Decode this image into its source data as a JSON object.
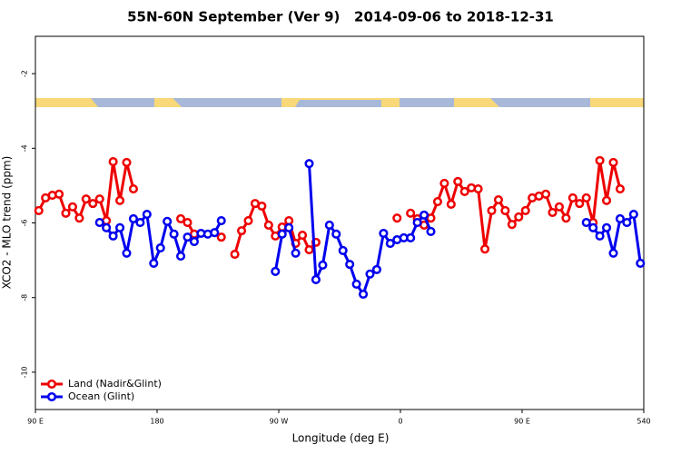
{
  "chart_data": {
    "type": "line",
    "title": "55N-60N September (Ver 9)   2014-09-06 to 2018-12-31",
    "xlabel": "Longitude (deg E)",
    "ylabel": "XCO2 - MLO trend (ppm)",
    "x": [
      92.5,
      97.5,
      102.5,
      107.5,
      112.5,
      117.5,
      122.5,
      127.5,
      132.5,
      137.5,
      142.5,
      147.5,
      152.5,
      157.5,
      162.5,
      167.5,
      172.5,
      177.5,
      182.5,
      187.5,
      192.5,
      197.5,
      202.5,
      207.5,
      212.5,
      217.5,
      222.5,
      227.5,
      232.5,
      237.5,
      242.5,
      247.5,
      252.5,
      257.5,
      262.5,
      267.5,
      272.5,
      277.5,
      282.5,
      287.5,
      292.5,
      297.5,
      302.5,
      307.5,
      312.5,
      317.5,
      322.5,
      327.5,
      332.5,
      337.5,
      342.5,
      347.5,
      352.5,
      357.5,
      362.5,
      367.5,
      372.5,
      377.5,
      382.5,
      387.5,
      392.5,
      397.5,
      402.5,
      407.5,
      412.5,
      417.5,
      422.5,
      427.5,
      432.5,
      437.5,
      442.5,
      447.5,
      452.5,
      457.5,
      462.5,
      467.5,
      472.5,
      477.5,
      482.5,
      487.5,
      492.5,
      497.5,
      502.5,
      507.5,
      512.5,
      517.5,
      522.5,
      527.5,
      532.5,
      537.5
    ],
    "series": [
      {
        "name": "Land (Nadir&Glint)",
        "color": "#ee0000",
        "values": [
          -5.67,
          -5.33,
          -5.26,
          -5.23,
          -5.74,
          -5.57,
          -5.87,
          -5.36,
          -5.48,
          -5.36,
          -5.94,
          -4.36,
          -5.4,
          -4.38,
          -5.09,
          null,
          null,
          null,
          null,
          null,
          null,
          -5.89,
          -5.99,
          -6.3,
          null,
          null,
          null,
          -6.38,
          null,
          -6.84,
          -6.21,
          -5.94,
          -5.48,
          -5.55,
          -6.06,
          -6.35,
          -6.11,
          -5.94,
          -6.55,
          -6.33,
          -6.72,
          -6.52,
          null,
          null,
          null,
          null,
          null,
          null,
          null,
          null,
          null,
          null,
          null,
          -5.87,
          null,
          -5.74,
          -5.89,
          -6.06,
          -5.87,
          -5.43,
          -4.94,
          -5.5,
          -4.89,
          -5.16,
          -5.06,
          -5.09,
          -6.7,
          -5.67,
          -5.38,
          -5.67,
          -6.04,
          -5.84,
          -5.67,
          -5.33,
          -5.28,
          -5.23,
          -5.72,
          -5.57,
          -5.87,
          -5.33,
          -5.48,
          -5.33,
          -5.99,
          -4.33,
          -5.4,
          -4.38,
          -5.09,
          null,
          null,
          null
        ]
      },
      {
        "name": "Ocean (Glint)",
        "color": "#0000ee",
        "values": [
          null,
          null,
          null,
          null,
          null,
          null,
          null,
          null,
          null,
          -5.99,
          -6.13,
          -6.35,
          -6.13,
          -6.81,
          -5.89,
          -5.99,
          -5.77,
          -7.08,
          -6.67,
          -5.96,
          -6.3,
          -6.89,
          -6.38,
          -6.5,
          -6.28,
          -6.3,
          -6.26,
          -5.94,
          null,
          null,
          null,
          null,
          null,
          null,
          null,
          -7.3,
          -6.3,
          -6.13,
          -6.81,
          null,
          -4.41,
          -7.52,
          -7.13,
          -6.06,
          -6.3,
          -6.74,
          -7.11,
          -7.64,
          -7.91,
          -7.37,
          -7.25,
          -6.28,
          -6.55,
          -6.45,
          -6.4,
          -6.4,
          -5.99,
          -5.79,
          -6.23,
          null,
          null,
          null,
          null,
          null,
          null,
          null,
          null,
          null,
          null,
          null,
          null,
          null,
          null,
          null,
          null,
          null,
          null,
          null,
          null,
          null,
          null,
          -5.99,
          -6.13,
          -6.35,
          -6.13,
          -6.81,
          -5.89,
          -5.99,
          -5.77,
          -7.08
        ]
      }
    ],
    "xlim": [
      90,
      540
    ],
    "xticks": [
      {
        "value": 90,
        "label": "90 E"
      },
      180,
      {
        "value": 270,
        "label": "90 W"
      },
      {
        "value": 360,
        "label": "0"
      },
      {
        "value": 450,
        "label": "90 E"
      },
      540
    ],
    "ylim": [
      -11,
      -1
    ],
    "yticks": [
      -2,
      -4,
      -6,
      -8,
      -10
    ],
    "legend": "bottom-left"
  }
}
